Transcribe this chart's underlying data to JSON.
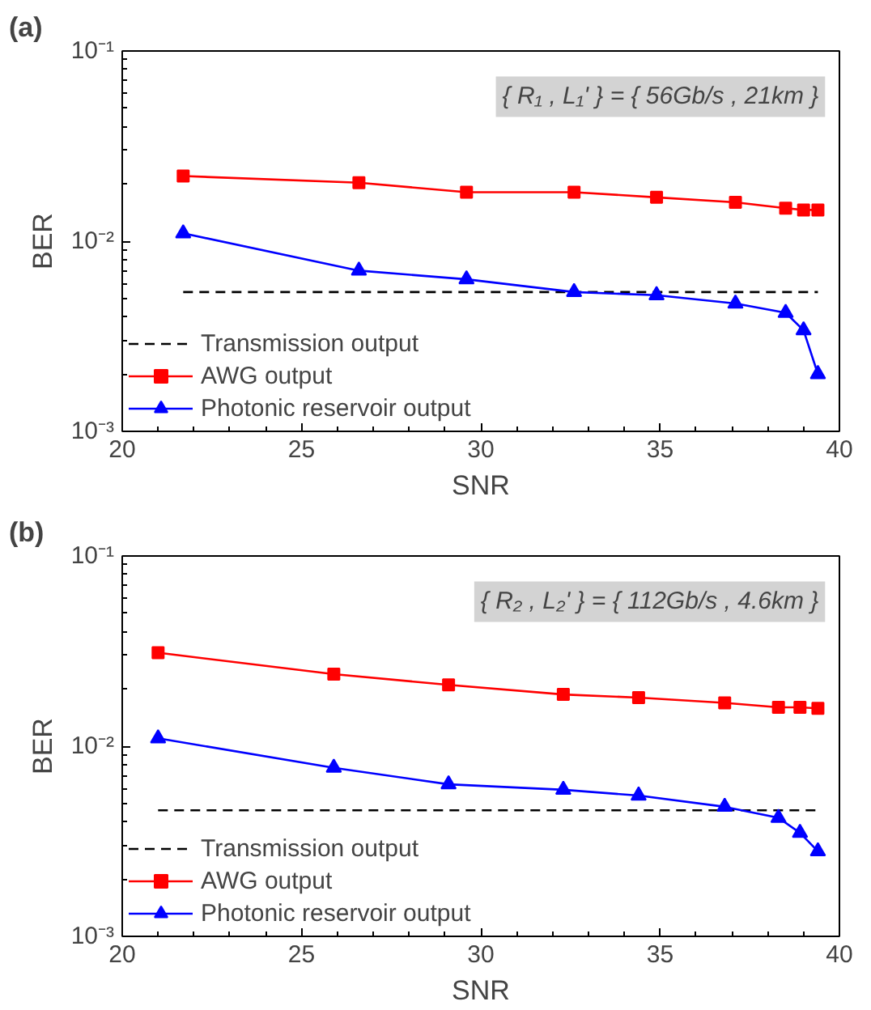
{
  "chart_data": [
    {
      "type": "line",
      "title": "(a)",
      "xlabel": "SNR",
      "ylabel": "BER",
      "xlim": [
        20,
        40
      ],
      "xticks": [
        20,
        25,
        30,
        35,
        40
      ],
      "ylim": [
        0.001,
        0.1
      ],
      "yticks": [
        {
          "value": 0.001,
          "label": "10⁻³"
        },
        {
          "value": 0.01,
          "label": "10⁻²"
        },
        {
          "value": 0.1,
          "label": "10⁻¹"
        }
      ],
      "log": "y",
      "grid": false,
      "legend": "bottom left",
      "annotations": [
        "{ R₁ , L₁' } = { 56Gb/s , 21km }"
      ],
      "series": [
        {
          "name": "Transmission output",
          "color": "#000000",
          "line_style": "dashed",
          "marker": "none",
          "x": [
            21.7,
            39.4
          ],
          "values": [
            0.0054,
            0.0054
          ]
        },
        {
          "name": "AWG output",
          "color": "#ff0000",
          "line_style": "solid",
          "marker": "square",
          "x": [
            21.7,
            26.6,
            29.6,
            32.6,
            34.9,
            37.1,
            38.5,
            39.0,
            39.4
          ],
          "values": [
            0.022,
            0.0203,
            0.0181,
            0.0181,
            0.017,
            0.016,
            0.0149,
            0.0146,
            0.0146
          ]
        },
        {
          "name": "Photonic reservoir output",
          "color": "#0000ff",
          "line_style": "solid",
          "marker": "triangle",
          "x": [
            21.7,
            26.6,
            29.6,
            32.6,
            34.9,
            37.1,
            38.5,
            39.0,
            39.4
          ],
          "values": [
            0.011,
            0.007,
            0.0063,
            0.0054,
            0.0052,
            0.0047,
            0.0042,
            0.0034,
            0.002
          ]
        }
      ]
    },
    {
      "type": "line",
      "title": "(b)",
      "xlabel": "SNR",
      "ylabel": "BER",
      "xlim": [
        20,
        40
      ],
      "xticks": [
        20,
        25,
        30,
        35,
        40
      ],
      "ylim": [
        0.001,
        0.1
      ],
      "yticks": [
        {
          "value": 0.001,
          "label": "10⁻³"
        },
        {
          "value": 0.01,
          "label": "10⁻²"
        },
        {
          "value": 0.1,
          "label": "10⁻¹"
        }
      ],
      "log": "y",
      "grid": false,
      "legend": "bottom left",
      "annotations": [
        "{ R₂ , L₂' } = { 112Gb/s , 4.6km }"
      ],
      "series": [
        {
          "name": "Transmission output",
          "color": "#000000",
          "line_style": "dashed",
          "marker": "none",
          "x": [
            21.0,
            39.4
          ],
          "values": [
            0.0046,
            0.0046
          ]
        },
        {
          "name": "AWG output",
          "color": "#ff0000",
          "line_style": "solid",
          "marker": "square",
          "x": [
            21.0,
            25.9,
            29.1,
            32.3,
            34.4,
            36.8,
            38.3,
            38.9,
            39.4
          ],
          "values": [
            0.031,
            0.0239,
            0.021,
            0.0187,
            0.018,
            0.0169,
            0.016,
            0.016,
            0.0158
          ]
        },
        {
          "name": "Photonic reservoir output",
          "color": "#0000ff",
          "line_style": "solid",
          "marker": "triangle",
          "x": [
            21.0,
            25.9,
            29.1,
            32.3,
            34.4,
            36.8,
            38.3,
            38.9,
            39.4
          ],
          "values": [
            0.011,
            0.0077,
            0.0063,
            0.0059,
            0.0055,
            0.0048,
            0.0042,
            0.0035,
            0.0028
          ]
        }
      ]
    }
  ]
}
